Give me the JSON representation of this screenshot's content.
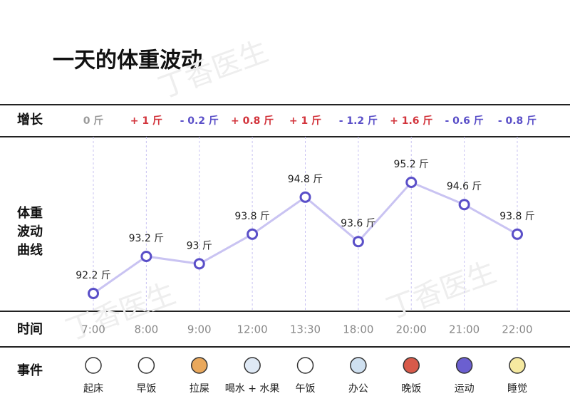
{
  "chart_data": {
    "type": "line",
    "title": "一天的体重波动",
    "watermark": "丁香医生",
    "row_labels": {
      "change": "增长",
      "curve": "体重\n波动\n曲线",
      "time": "时间",
      "event": "事件"
    },
    "categories": [
      "7:00",
      "8:00",
      "9:00",
      "12:00",
      "13:30",
      "18:00",
      "20:00",
      "21:00",
      "22:00"
    ],
    "values": [
      92.2,
      93.2,
      93,
      93.8,
      94.8,
      93.6,
      95.2,
      94.6,
      93.8
    ],
    "value_labels": [
      "92.2 斤",
      "93.2 斤",
      "93 斤",
      "93.8 斤",
      "94.8 斤",
      "93.6 斤",
      "95.2 斤",
      "94.6 斤",
      "93.8 斤"
    ],
    "changes": [
      {
        "value": 0,
        "label": "0 斤"
      },
      {
        "value": 1,
        "label": "+ 1 斤"
      },
      {
        "value": -0.2,
        "label": "- 0.2 斤"
      },
      {
        "value": 0.8,
        "label": "+ 0.8 斤"
      },
      {
        "value": 1,
        "label": "+ 1 斤"
      },
      {
        "value": -1.2,
        "label": "- 1.2 斤"
      },
      {
        "value": 1.6,
        "label": "+ 1.6 斤"
      },
      {
        "value": -0.6,
        "label": "- 0.6 斤"
      },
      {
        "value": -0.8,
        "label": "- 0.8 斤"
      }
    ],
    "events": [
      "起床",
      "早饭",
      "拉屎",
      "喝水 + 水果",
      "午饭",
      "办公",
      "晚饭",
      "运动",
      "睡觉"
    ],
    "color": "#c9c3f2",
    "marker_color": "#5a4fc8",
    "change_colors": {
      "up": "#d2343c",
      "down": "#5a4fc8",
      "zero": "#9a9a9a"
    }
  }
}
